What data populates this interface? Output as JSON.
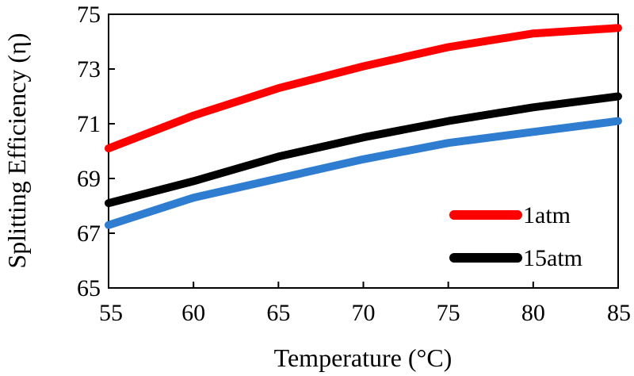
{
  "chart_data": {
    "type": "line",
    "title": "",
    "xlabel": "Temperature (°C)",
    "ylabel": "Splitting Efficiency (η)",
    "xlim": [
      55,
      85
    ],
    "ylim": [
      65,
      75
    ],
    "xticks": [
      "55",
      "60",
      "65",
      "70",
      "75",
      "80",
      "85"
    ],
    "yticks": [
      "65",
      "67",
      "69",
      "71",
      "73",
      "75"
    ],
    "grid": false,
    "legend_position": "bottom-right",
    "legend_entries": [
      "1atm",
      "15atm"
    ],
    "series": [
      {
        "name": "1atm",
        "color": "#ff0000",
        "x": [
          55,
          60,
          65,
          70,
          75,
          80,
          85
        ],
        "y": [
          70.1,
          71.3,
          72.3,
          73.1,
          73.8,
          74.3,
          74.5
        ]
      },
      {
        "name": "15atm",
        "color": "#000000",
        "x": [
          55,
          60,
          65,
          70,
          75,
          80,
          85
        ],
        "y": [
          68.1,
          68.9,
          69.8,
          70.5,
          71.1,
          71.6,
          72.0
        ]
      },
      {
        "color": "#2e7dd1",
        "x": [
          55,
          60,
          65,
          70,
          75,
          80,
          85
        ],
        "y": [
          67.3,
          68.3,
          69.0,
          69.7,
          70.3,
          70.7,
          71.1
        ]
      }
    ]
  }
}
